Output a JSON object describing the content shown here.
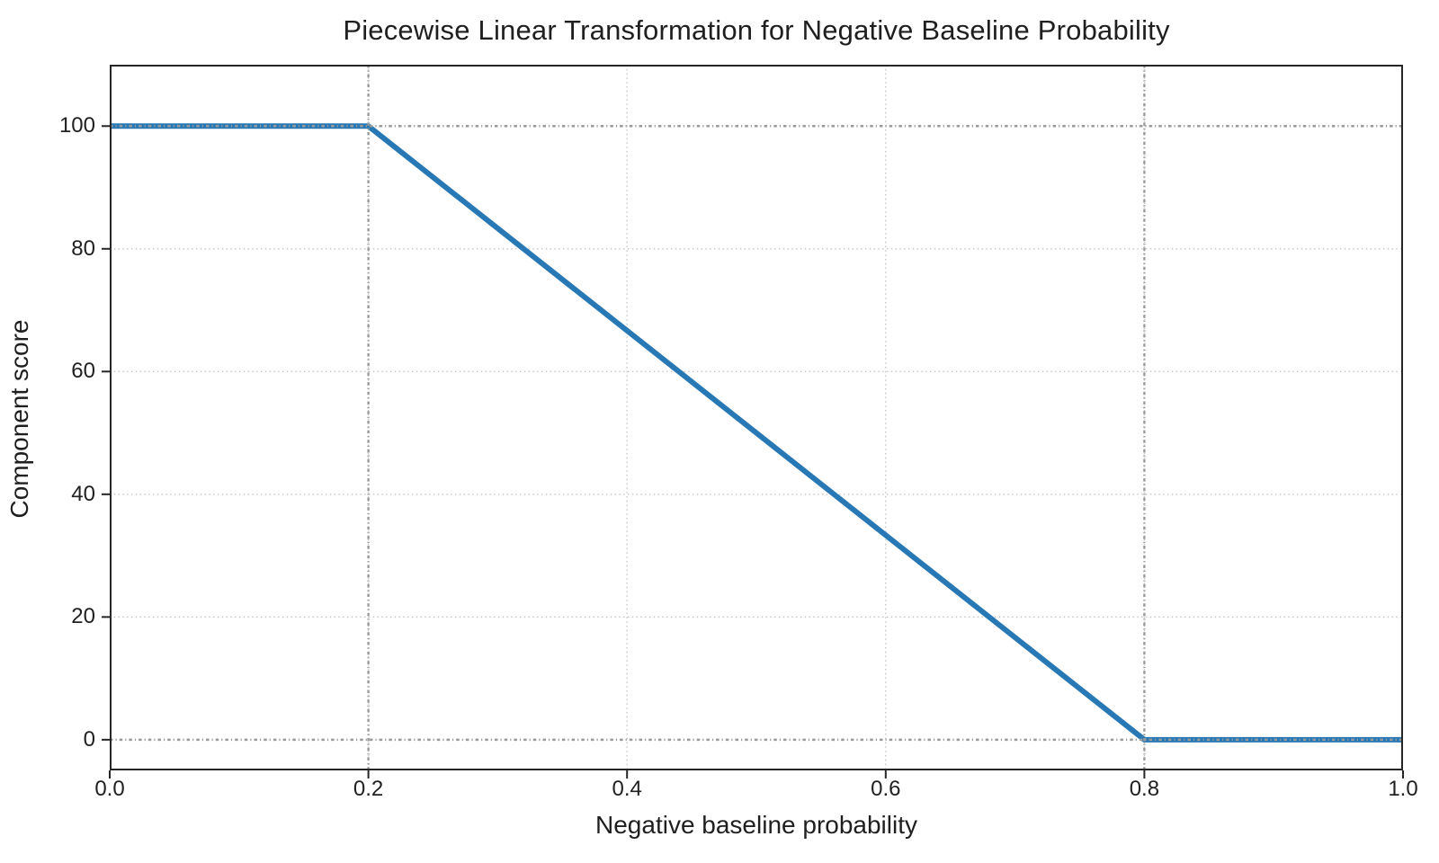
{
  "chart_data": {
    "type": "line",
    "title": "Piecewise Linear Transformation for Negative Baseline Probability",
    "xlabel": "Negative baseline probability",
    "ylabel": "Component score",
    "xlim": [
      0.0,
      1.0
    ],
    "ylim": [
      -5,
      110
    ],
    "x_ticks": {
      "values": [
        0.0,
        0.2,
        0.4,
        0.6,
        0.8,
        1.0
      ],
      "labels": [
        "0.0",
        "0.2",
        "0.4",
        "0.6",
        "0.8",
        "1.0"
      ]
    },
    "y_ticks": {
      "values": [
        0,
        20,
        40,
        60,
        80,
        100
      ],
      "labels": [
        "0",
        "20",
        "40",
        "60",
        "80",
        "100"
      ]
    },
    "grid": {
      "on": true,
      "style": "dotted",
      "color": "#c3c3c3",
      "x_values": [
        0.2,
        0.4,
        0.6,
        0.8
      ],
      "y_values": [
        20,
        40,
        60,
        80
      ]
    },
    "reference_lines": {
      "style": "dash-dot",
      "color": "#9a9a9a",
      "x_values": [
        0.2,
        0.8
      ],
      "y_values": [
        0,
        100
      ]
    },
    "series": [
      {
        "name": "piecewise-transform",
        "color": "#2878b5",
        "linewidth": 6,
        "points": [
          [
            0.0,
            100
          ],
          [
            0.2,
            100
          ],
          [
            0.8,
            0
          ],
          [
            1.0,
            0
          ]
        ]
      }
    ],
    "spine_color": "#262626",
    "legend": "none"
  }
}
